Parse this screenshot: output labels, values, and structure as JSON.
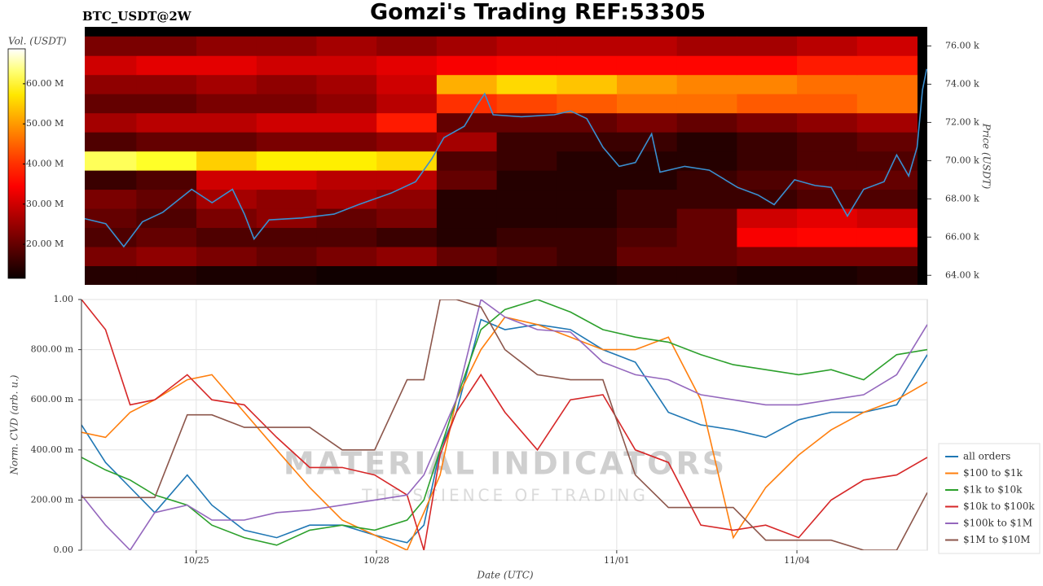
{
  "chart_data": [
    {
      "type": "heatmap",
      "title": "Gomzi's Trading REF:53305",
      "subtitle": "BTC_USDT@2W",
      "colorbar_label": "Vol. (USDT)",
      "ylabel": "Price (USDT)",
      "colormap": "hot",
      "x": [
        -1.5,
        -0.5,
        0.5,
        1.5,
        2.5,
        3.5,
        4.5,
        5.5,
        6.5,
        7.5,
        8.5,
        9.5,
        10.5,
        11.5
      ],
      "y": [
        64,
        65,
        66,
        67,
        68,
        69,
        70,
        71,
        72,
        73,
        74,
        75,
        76
      ],
      "values": [
        [
          14,
          14,
          13,
          13,
          12,
          12,
          12,
          13,
          13,
          14,
          14,
          13,
          13,
          14
        ],
        [
          22,
          24,
          22,
          20,
          22,
          24,
          20,
          18,
          16,
          20,
          20,
          22,
          22,
          22
        ],
        [
          18,
          20,
          18,
          18,
          18,
          16,
          14,
          16,
          16,
          18,
          20,
          34,
          36,
          36
        ],
        [
          20,
          18,
          22,
          24,
          20,
          22,
          14,
          14,
          14,
          16,
          20,
          30,
          32,
          30
        ],
        [
          22,
          20,
          26,
          24,
          26,
          24,
          14,
          14,
          14,
          16,
          16,
          16,
          18,
          18
        ],
        [
          16,
          18,
          30,
          30,
          28,
          28,
          20,
          14,
          14,
          14,
          16,
          18,
          20,
          20
        ],
        [
          62,
          60,
          55,
          58,
          58,
          56,
          18,
          16,
          14,
          14,
          14,
          16,
          18,
          18
        ],
        [
          18,
          20,
          20,
          22,
          22,
          24,
          26,
          16,
          16,
          16,
          14,
          16,
          18,
          20
        ],
        [
          26,
          28,
          28,
          30,
          30,
          38,
          20,
          20,
          20,
          22,
          20,
          22,
          24,
          26
        ],
        [
          20,
          20,
          22,
          22,
          24,
          28,
          40,
          42,
          44,
          46,
          46,
          44,
          44,
          46
        ],
        [
          24,
          24,
          26,
          24,
          26,
          30,
          52,
          56,
          54,
          50,
          48,
          48,
          46,
          46
        ],
        [
          30,
          32,
          32,
          30,
          30,
          32,
          34,
          36,
          36,
          36,
          36,
          36,
          38,
          38
        ],
        [
          22,
          22,
          24,
          24,
          26,
          24,
          26,
          28,
          28,
          28,
          26,
          26,
          28,
          30
        ]
      ],
      "clim": [
        11.5,
        68.7
      ],
      "cticks": [
        {
          "value": 20,
          "label": "20.00 M"
        },
        {
          "value": 30,
          "label": "30.00 M"
        },
        {
          "value": 40,
          "label": "40.00 M"
        },
        {
          "value": 50,
          "label": "50.00 M"
        },
        {
          "value": 60,
          "label": "60.00 M"
        }
      ],
      "xlim": [
        -1.86,
        12.17
      ],
      "ylim": [
        63.5,
        77
      ],
      "yticks": [
        {
          "value": 64,
          "label": "64.00 k"
        },
        {
          "value": 66,
          "label": "66.00 k"
        },
        {
          "value": 68,
          "label": "68.00 k"
        },
        {
          "value": 70,
          "label": "70.00 k"
        },
        {
          "value": 72,
          "label": "72.00 k"
        },
        {
          "value": 74,
          "label": "74.00 k"
        },
        {
          "value": 76,
          "label": "76.00 k"
        }
      ],
      "line": {
        "color": "#3a8fd0",
        "x": [
          -1.91,
          -1.51,
          -1.21,
          -0.9,
          -0.56,
          -0.08,
          0.26,
          0.6,
          0.8,
          0.96,
          1.21,
          1.75,
          2.29,
          2.7,
          3.24,
          3.65,
          3.92,
          4.12,
          4.46,
          4.67,
          4.8,
          4.94,
          5.41,
          5.96,
          6.23,
          6.5,
          6.77,
          7.04,
          7.31,
          7.58,
          7.72,
          8.13,
          8.54,
          9.01,
          9.35,
          9.62,
          9.96,
          10.3,
          10.57,
          10.84,
          11.11,
          11.45,
          11.66,
          11.86,
          12.0,
          12.09,
          12.16
        ],
        "values": [
          67.0,
          66.7,
          65.5,
          66.8,
          67.3,
          68.5,
          67.8,
          68.5,
          67.2,
          65.9,
          66.9,
          67.0,
          67.2,
          67.7,
          68.3,
          68.9,
          70.1,
          71.2,
          71.8,
          72.9,
          73.5,
          72.4,
          72.3,
          72.4,
          72.6,
          72.2,
          70.7,
          69.7,
          69.9,
          71.4,
          69.4,
          69.7,
          69.5,
          68.6,
          68.2,
          67.7,
          69.0,
          68.7,
          68.6,
          67.1,
          68.5,
          68.9,
          70.3,
          69.2,
          70.7,
          73.7,
          74.8
        ]
      }
    },
    {
      "type": "line",
      "xlabel": "Date (UTC)",
      "ylabel": "Norm. CVD (arb. u.)",
      "watermark_title": "MATERIAL INDICATORS",
      "watermark_subtitle": "THE SCIENCE OF TRADING",
      "x": [
        -1.91,
        -1.51,
        -1.1,
        -0.69,
        -0.15,
        0.26,
        0.8,
        1.34,
        1.89,
        2.43,
        2.97,
        3.51,
        3.79,
        4.06,
        4.33,
        4.74,
        5.14,
        5.68,
        6.23,
        6.77,
        7.31,
        7.86,
        8.4,
        8.94,
        9.48,
        10.03,
        10.57,
        11.11,
        11.66,
        12.17
      ],
      "series": [
        {
          "name": "all orders",
          "color": "#1f77b4",
          "values": [
            0.5,
            0.35,
            0.25,
            0.15,
            0.3,
            0.18,
            0.08,
            0.05,
            0.1,
            0.1,
            0.06,
            0.03,
            0.1,
            0.4,
            0.55,
            0.92,
            0.88,
            0.9,
            0.88,
            0.8,
            0.75,
            0.55,
            0.5,
            0.48,
            0.45,
            0.52,
            0.55,
            0.55,
            0.58,
            0.78
          ]
        },
        {
          "name": "$100 to $1k",
          "color": "#ff7f0e",
          "values": [
            0.47,
            0.45,
            0.55,
            0.6,
            0.68,
            0.7,
            0.55,
            0.4,
            0.25,
            0.12,
            0.06,
            0.0,
            0.15,
            0.3,
            0.6,
            0.8,
            0.93,
            0.9,
            0.85,
            0.8,
            0.8,
            0.85,
            0.6,
            0.05,
            0.25,
            0.38,
            0.48,
            0.55,
            0.6,
            0.67
          ]
        },
        {
          "name": "$1k to $10k",
          "color": "#2ca02c",
          "values": [
            0.37,
            0.32,
            0.28,
            0.22,
            0.18,
            0.1,
            0.05,
            0.02,
            0.08,
            0.1,
            0.08,
            0.12,
            0.2,
            0.4,
            0.6,
            0.88,
            0.96,
            1.0,
            0.95,
            0.88,
            0.85,
            0.83,
            0.78,
            0.74,
            0.72,
            0.7,
            0.72,
            0.68,
            0.78,
            0.8
          ]
        },
        {
          "name": "$10k to $100k",
          "color": "#d62728",
          "values": [
            1.0,
            0.88,
            0.58,
            0.6,
            0.7,
            0.6,
            0.58,
            0.45,
            0.33,
            0.33,
            0.3,
            0.22,
            0.0,
            0.38,
            0.55,
            0.7,
            0.55,
            0.4,
            0.6,
            0.62,
            0.4,
            0.35,
            0.1,
            0.08,
            0.1,
            0.05,
            0.2,
            0.28,
            0.3,
            0.37
          ]
        },
        {
          "name": "$100k to $1M",
          "color": "#9467bd",
          "values": [
            0.22,
            0.1,
            0.0,
            0.15,
            0.18,
            0.12,
            0.12,
            0.15,
            0.16,
            0.18,
            0.2,
            0.22,
            0.3,
            0.45,
            0.6,
            1.0,
            0.93,
            0.88,
            0.87,
            0.75,
            0.7,
            0.68,
            0.62,
            0.6,
            0.58,
            0.58,
            0.6,
            0.62,
            0.7,
            0.9
          ]
        },
        {
          "name": "$1M to $10M",
          "color": "#8c564b",
          "values": [
            0.21,
            0.21,
            0.21,
            0.21,
            0.54,
            0.54,
            0.49,
            0.49,
            0.49,
            0.4,
            0.4,
            0.68,
            0.68,
            1.0,
            1.0,
            0.97,
            0.8,
            0.7,
            0.68,
            0.68,
            0.3,
            0.17,
            0.17,
            0.17,
            0.04,
            0.04,
            0.04,
            0.0,
            0.0,
            0.23
          ]
        }
      ],
      "xlim": [
        -1.91,
        12.17
      ],
      "ylim": [
        0,
        1
      ],
      "xticks": [
        {
          "value": 0,
          "label": "10/25"
        },
        {
          "value": 3,
          "label": "10/28"
        },
        {
          "value": 7,
          "label": "11/01"
        },
        {
          "value": 10,
          "label": "11/04"
        }
      ],
      "yticks": [
        {
          "value": 0,
          "label": "0.00"
        },
        {
          "value": 0.2,
          "label": "200.00 m"
        },
        {
          "value": 0.4,
          "label": "400.00 m"
        },
        {
          "value": 0.6,
          "label": "600.00 m"
        },
        {
          "value": 0.8,
          "label": "800.00 m"
        },
        {
          "value": 1,
          "label": "1.00"
        }
      ],
      "grid": true,
      "legend": "lower right"
    }
  ]
}
